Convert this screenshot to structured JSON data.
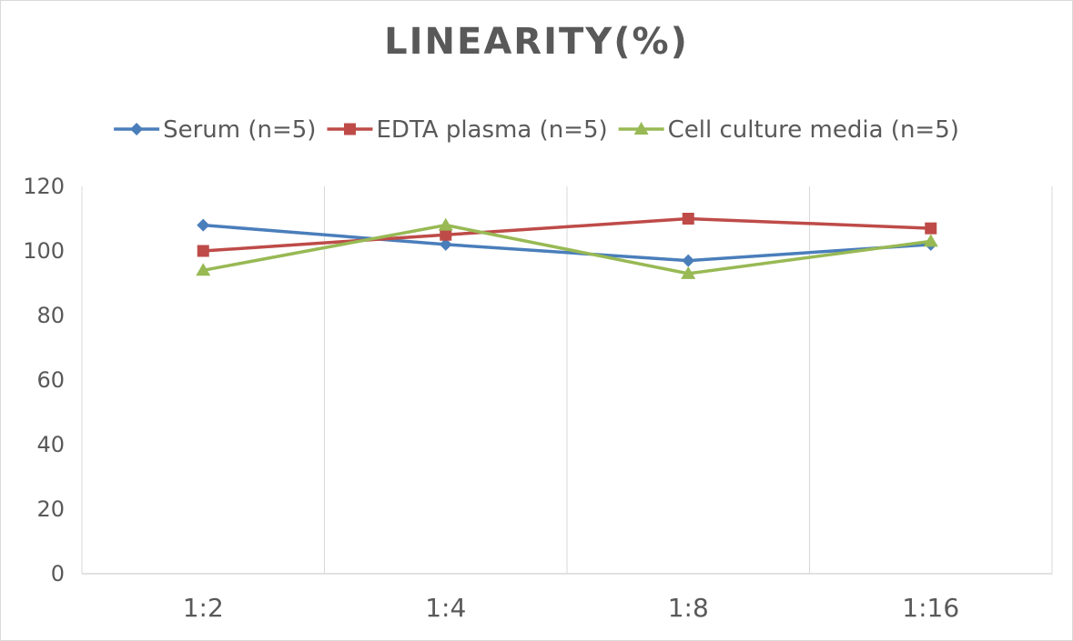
{
  "chart_data": {
    "type": "line",
    "title": "LINEARITY(%)",
    "xlabel": "",
    "ylabel": "",
    "categories": [
      "1:2",
      "1:4",
      "1:8",
      "1:16"
    ],
    "ylim": [
      0,
      120
    ],
    "yticks": [
      0,
      20,
      40,
      60,
      80,
      100,
      120
    ],
    "grid": "vertical",
    "legend_position": "top",
    "series": [
      {
        "name": "Serum (n=5)",
        "color": "#4a7ebb",
        "marker": "diamond",
        "values": [
          108,
          102,
          97,
          102
        ]
      },
      {
        "name": "EDTA plasma (n=5)",
        "color": "#be4b48",
        "marker": "square",
        "values": [
          100,
          105,
          110,
          107
        ]
      },
      {
        "name": "Cell culture media (n=5)",
        "color": "#98b954",
        "marker": "triangle",
        "values": [
          94,
          108,
          93,
          103
        ]
      }
    ]
  }
}
